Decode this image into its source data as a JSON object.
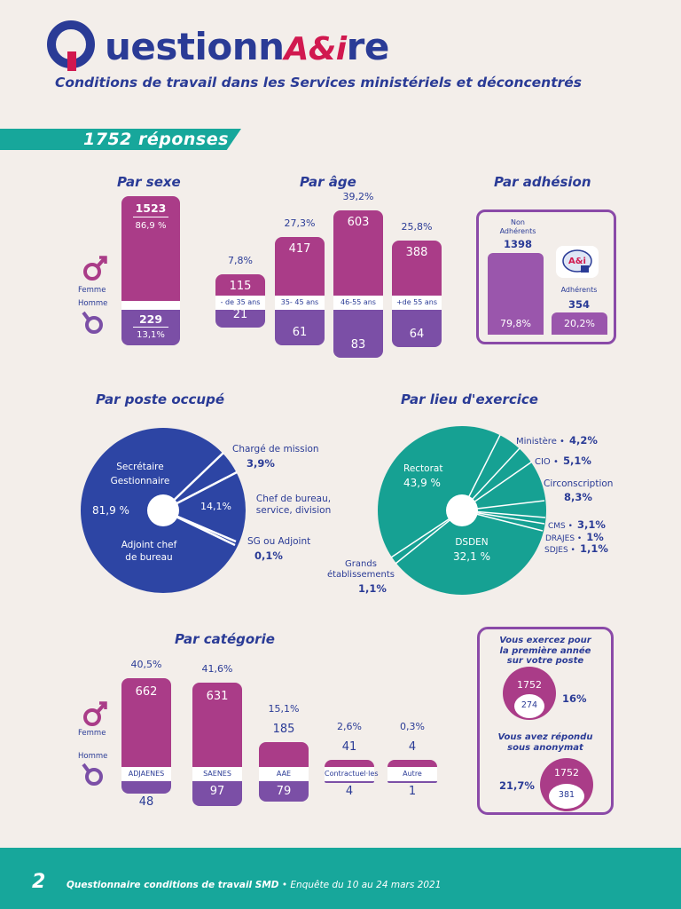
{
  "header": {
    "logo_text_1": "uestionn",
    "logo_text_a": "A&i",
    "logo_text_2": "re",
    "subtitle": "Conditions de travail dans les Services ministériels et déconcentrés"
  },
  "responses": "1752 réponses",
  "sexe": {
    "title": "Par sexe",
    "femme_label": "Femme",
    "homme_label": "Homme",
    "femme_value": "1523",
    "femme_pct": "86,9 %",
    "homme_value": "229",
    "homme_pct": "13,1%"
  },
  "age": {
    "title": "Par âge",
    "groups": [
      {
        "label": "- de 35 ans",
        "pct": "7,8%",
        "femme": "115",
        "homme": "21"
      },
      {
        "label": "35- 45 ans",
        "pct": "27,3%",
        "femme": "417",
        "homme": "61"
      },
      {
        "label": "46-55 ans",
        "pct": "39,2%",
        "femme": "603",
        "homme": "83"
      },
      {
        "label": "+de 55 ans",
        "pct": "25,8%",
        "femme": "388",
        "homme": "64"
      }
    ]
  },
  "adhesion": {
    "title": "Par adhésion",
    "non_label_1": "Non",
    "non_label_2": "Adhérents",
    "non_value": "1398",
    "non_pct": "79,8%",
    "adh_label": "Adhérents",
    "adh_value": "354",
    "adh_pct": "20,2%",
    "logo_text": "A&i"
  },
  "poste": {
    "title": "Par poste occupé",
    "labels": {
      "secretaire_1": "Secrétaire",
      "secretaire_2": "Gestionnaire",
      "main_pct": "81,9 %",
      "adjoint_1": "Adjoint chef",
      "adjoint_2": "de bureau",
      "charge_1": "Chargé de mission",
      "charge_pct": "3,9%",
      "chef_pct": "14,1%",
      "chef_1": "Chef de bureau,",
      "chef_2": "service, division",
      "sg_1": "SG ou Adjoint",
      "sg_pct": "0,1%"
    }
  },
  "lieu": {
    "title": "Par lieu d'exercice",
    "labels": {
      "rectorat": "Rectorat",
      "rectorat_pct": "43,9 %",
      "dsden": "DSDEN",
      "dsden_pct": "32,1 %",
      "ministere": "Ministère •",
      "ministere_pct": "4,2%",
      "cio": "CIO •",
      "cio_pct": "5,1%",
      "circ": "Circonscription",
      "circ_pct": "8,3%",
      "cms": "CMS •",
      "cms_pct": "3,1%",
      "drajes": "DRAJES •",
      "drajes_pct": "1%",
      "sdjes": "SDJES •",
      "sdjes_pct": "1,1%",
      "grands_1": "Grands",
      "grands_2": "établissements",
      "grands_pct": "1,1%"
    }
  },
  "categorie": {
    "title": "Par catégorie",
    "femme_label": "Femme",
    "homme_label": "Homme",
    "groups": [
      {
        "label": "ADJAENES",
        "pct": "40,5%",
        "femme": "662",
        "homme": "48"
      },
      {
        "label": "SAENES",
        "pct": "41,6%",
        "femme": "631",
        "homme": "97"
      },
      {
        "label": "AAE",
        "pct": "15,1%",
        "femme": "185",
        "homme": "79"
      },
      {
        "label": "Contractuel·les",
        "pct": "2,6%",
        "femme": "41",
        "homme": "4"
      },
      {
        "label": "Autre",
        "pct": "0,3%",
        "femme": "4",
        "homme": "1"
      }
    ]
  },
  "premiere": {
    "q1_l1": "Vous exercez pour",
    "q1_l2": "la première année",
    "q1_l3": "sur votre poste",
    "q1_total": "1752",
    "q1_value": "274",
    "q1_pct": "16%",
    "q2_l1": "Vous avez répondu",
    "q2_l2": "sous anonymat",
    "q2_total": "1752",
    "q2_value": "381",
    "q2_pct": "21,7%"
  },
  "footer": {
    "page": "2",
    "text_bold": "Questionnaire conditions de travail SMD",
    "text_rest": " • Enquête du 10 au 24 mars 2021"
  },
  "colors": {
    "navy": "#2a3b96",
    "magenta": "#aa3c88",
    "purple": "#7b4fa6",
    "teal": "#17a79b",
    "blue_pie": "#2d45a4",
    "teal_pie": "#16a193"
  }
}
